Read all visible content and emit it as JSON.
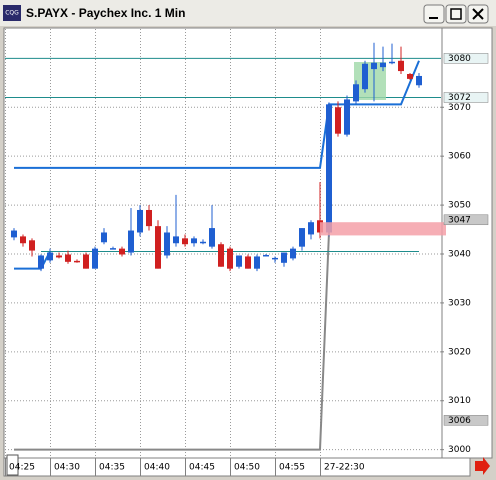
{
  "window": {
    "icon_label": "CQG",
    "title": "S.PAYX - Paychex Inc. 1 Min"
  },
  "chart_data": {
    "type": "candlestick",
    "categories": [
      "04:25",
      null,
      null,
      null,
      null,
      "04:30",
      null,
      null,
      null,
      null,
      "04:35",
      null,
      null,
      null,
      null,
      "04:40",
      null,
      null,
      null,
      null,
      "04:45",
      null,
      null,
      null,
      null,
      "04:50",
      null,
      null,
      null,
      null,
      "04:55",
      null,
      null,
      null,
      null,
      "27-22:30",
      null,
      null,
      null,
      null,
      null,
      null,
      null,
      null,
      null,
      null
    ],
    "open": [
      3043.4,
      3043.6,
      3042.8,
      3037.0,
      3038.7,
      3039.7,
      3039.9,
      3038.6,
      3039.9,
      3037.0,
      3042.4,
      3041.1,
      3041.1,
      3040.3,
      3044.4,
      3049.0,
      3045.7,
      3039.7,
      3042.2,
      3043.2,
      3042.2,
      3042.4,
      3041.5,
      3042.0,
      3041.1,
      3037.4,
      3039.5,
      3037.0,
      3039.7,
      3039.1,
      3038.2,
      3039.1,
      3041.5,
      3044.0,
      3046.9,
      3044.4,
      3070.0,
      3064.4,
      3071.2,
      3073.7,
      3077.8,
      3078.2,
      3079.1,
      3079.5,
      3076.8,
      3074.5
    ],
    "high": [
      3045.3,
      3044.0,
      3043.2,
      3039.9,
      3041.1,
      3040.3,
      3040.7,
      3038.9,
      3040.3,
      3041.5,
      3045.3,
      3041.5,
      3041.5,
      3049.4,
      3050.0,
      3050.0,
      3046.9,
      3045.7,
      3052.1,
      3044.0,
      3043.6,
      3043.0,
      3050.0,
      3042.4,
      3041.5,
      3039.7,
      3039.9,
      3039.9,
      3040.0,
      3039.5,
      3040.3,
      3041.5,
      3045.3,
      3046.9,
      3054.7,
      3071.0,
      3071.2,
      3072.4,
      3075.5,
      3079.5,
      3083.2,
      3082.4,
      3083.0,
      3082.4,
      3077.0,
      3077.0
    ],
    "low": [
      3042.8,
      3041.5,
      3039.5,
      3036.5,
      3038.2,
      3039.1,
      3038.0,
      3038.2,
      3037.0,
      3037.0,
      3042.0,
      3041.1,
      3039.5,
      3039.7,
      3043.6,
      3044.8,
      3037.0,
      3039.1,
      3041.5,
      3041.5,
      3041.5,
      3042.0,
      3041.1,
      3037.4,
      3036.5,
      3037.0,
      3037.0,
      3036.5,
      3039.5,
      3038.2,
      3037.4,
      3038.7,
      3040.7,
      3043.0,
      3043.2,
      3043.6,
      3064.0,
      3064.0,
      3070.6,
      3073.0,
      3071.2,
      3077.4,
      3078.8,
      3076.8,
      3075.6,
      3074.0
    ],
    "close": [
      3044.8,
      3042.2,
      3040.7,
      3039.7,
      3040.3,
      3039.3,
      3038.4,
      3038.4,
      3037.0,
      3041.1,
      3044.4,
      3041.2,
      3039.9,
      3044.8,
      3049.0,
      3045.7,
      3037.0,
      3044.4,
      3043.6,
      3042.0,
      3043.2,
      3042.5,
      3045.3,
      3037.4,
      3037.0,
      3039.7,
      3037.0,
      3039.5,
      3039.8,
      3039.2,
      3040.3,
      3041.1,
      3045.3,
      3046.5,
      3044.4,
      3070.6,
      3064.6,
      3071.6,
      3074.7,
      3078.9,
      3079.1,
      3079.1,
      3079.3,
      3077.4,
      3075.8,
      3076.4
    ],
    "up_color": "#1f5fd1",
    "down_color": "#d02020",
    "lines": [
      {
        "color": "#888888",
        "x": [
          0,
          34,
          35
        ],
        "values": [
          3000,
          3000,
          3044.5
        ]
      },
      {
        "color": "#1a6fd6",
        "x": [
          0,
          3,
          4
        ],
        "values": [
          3037,
          3037,
          3040.5
        ]
      },
      {
        "color": "#1e8c8c",
        "x": [
          3,
          45
        ],
        "values": [
          3040.5,
          3040.5
        ]
      },
      {
        "color": "#1a6fd6",
        "x": [
          0,
          34,
          35,
          43,
          45
        ],
        "values": [
          3057.6,
          3057.6,
          3070.6,
          3070.6,
          3079.5
        ]
      }
    ],
    "band": {
      "color": "#f4a0a8",
      "x": [
        34,
        48
      ],
      "values": [
        3043.8,
        3046.5
      ]
    },
    "markers": [
      3080,
      3072,
      3047,
      3006
    ],
    "marker_lines": [
      3080,
      3072
    ],
    "ylim": [
      2998.5,
      3086
    ],
    "yticks": [
      3000,
      3010,
      3020,
      3030,
      3040,
      3050,
      3060,
      3070
    ],
    "grid": true
  }
}
